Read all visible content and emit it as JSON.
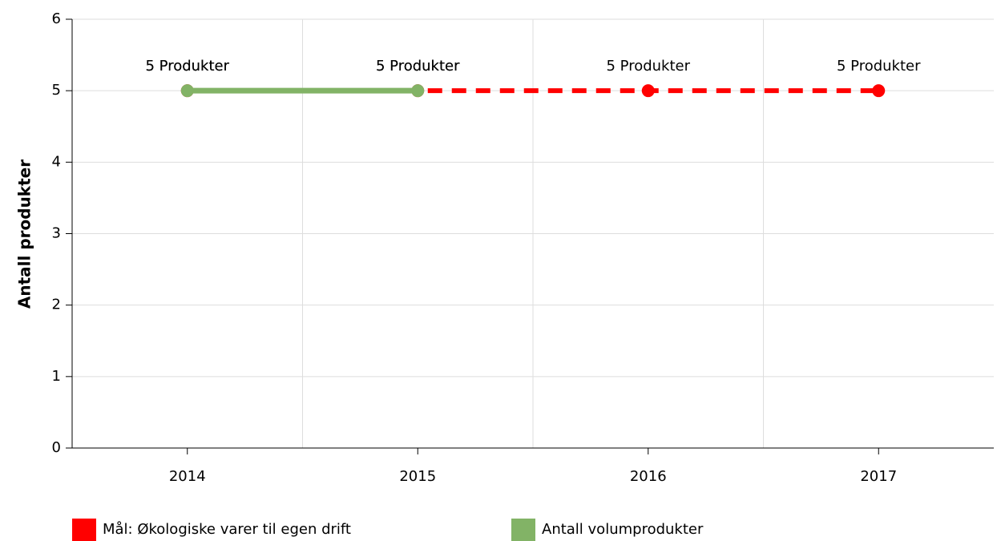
{
  "chart_data": {
    "type": "line",
    "categories": [
      "2014",
      "2015",
      "2016",
      "2017"
    ],
    "ylabel": "Antall produkter",
    "ylim": [
      0,
      6
    ],
    "yticks": [
      0,
      1,
      2,
      3,
      4,
      5,
      6
    ],
    "grid": true,
    "series": [
      {
        "name": "Mål: Økologiske varer til egen drift",
        "color": "#ff0000",
        "dashed": true,
        "values": [
          5,
          5,
          5,
          5
        ],
        "value_labels": [
          "5 Produkter",
          "5 Produkter",
          "5 Produkter",
          "5 Produkter"
        ]
      },
      {
        "name": "Antall volumprodukter",
        "color": "#82b366",
        "dashed": false,
        "values": [
          5,
          5,
          null,
          null
        ],
        "value_labels": [
          "5 Produkter",
          "5 Produkter",
          null,
          null
        ]
      }
    ]
  }
}
